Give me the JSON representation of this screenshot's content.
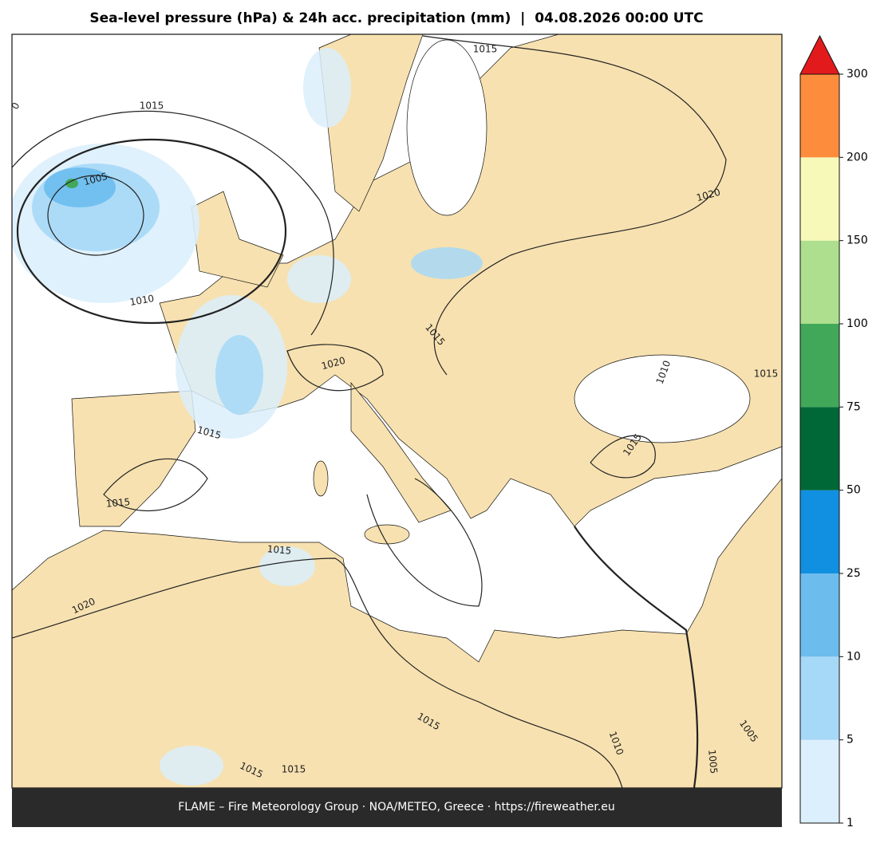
{
  "title": "Sea-level pressure (hPa) & 24h acc. precipitation (mm)  |  04.08.2026 00:00 UTC",
  "footer": "FLAME – Fire Meteorology Group · NOA/METEO, Greece · https://fireweather.eu",
  "colorbar": {
    "levels": [
      1,
      5,
      10,
      25,
      50,
      75,
      100,
      150,
      200,
      300
    ],
    "colors": [
      "#dbeffc",
      "#a6d8f7",
      "#6cbcee",
      "#118fe0",
      "#006837",
      "#41a85a",
      "#addf8e",
      "#f7f9b8",
      "#fd8d3c"
    ],
    "extend_color": "#e31a1c"
  },
  "contour_labels": [
    "0",
    1015,
    1005,
    1010,
    1015,
    1020,
    1015,
    1020,
    1010,
    1015,
    1015,
    1015,
    1015,
    1015,
    1020,
    1015,
    1010,
    1005,
    1005,
    1015,
    1015
  ]
}
